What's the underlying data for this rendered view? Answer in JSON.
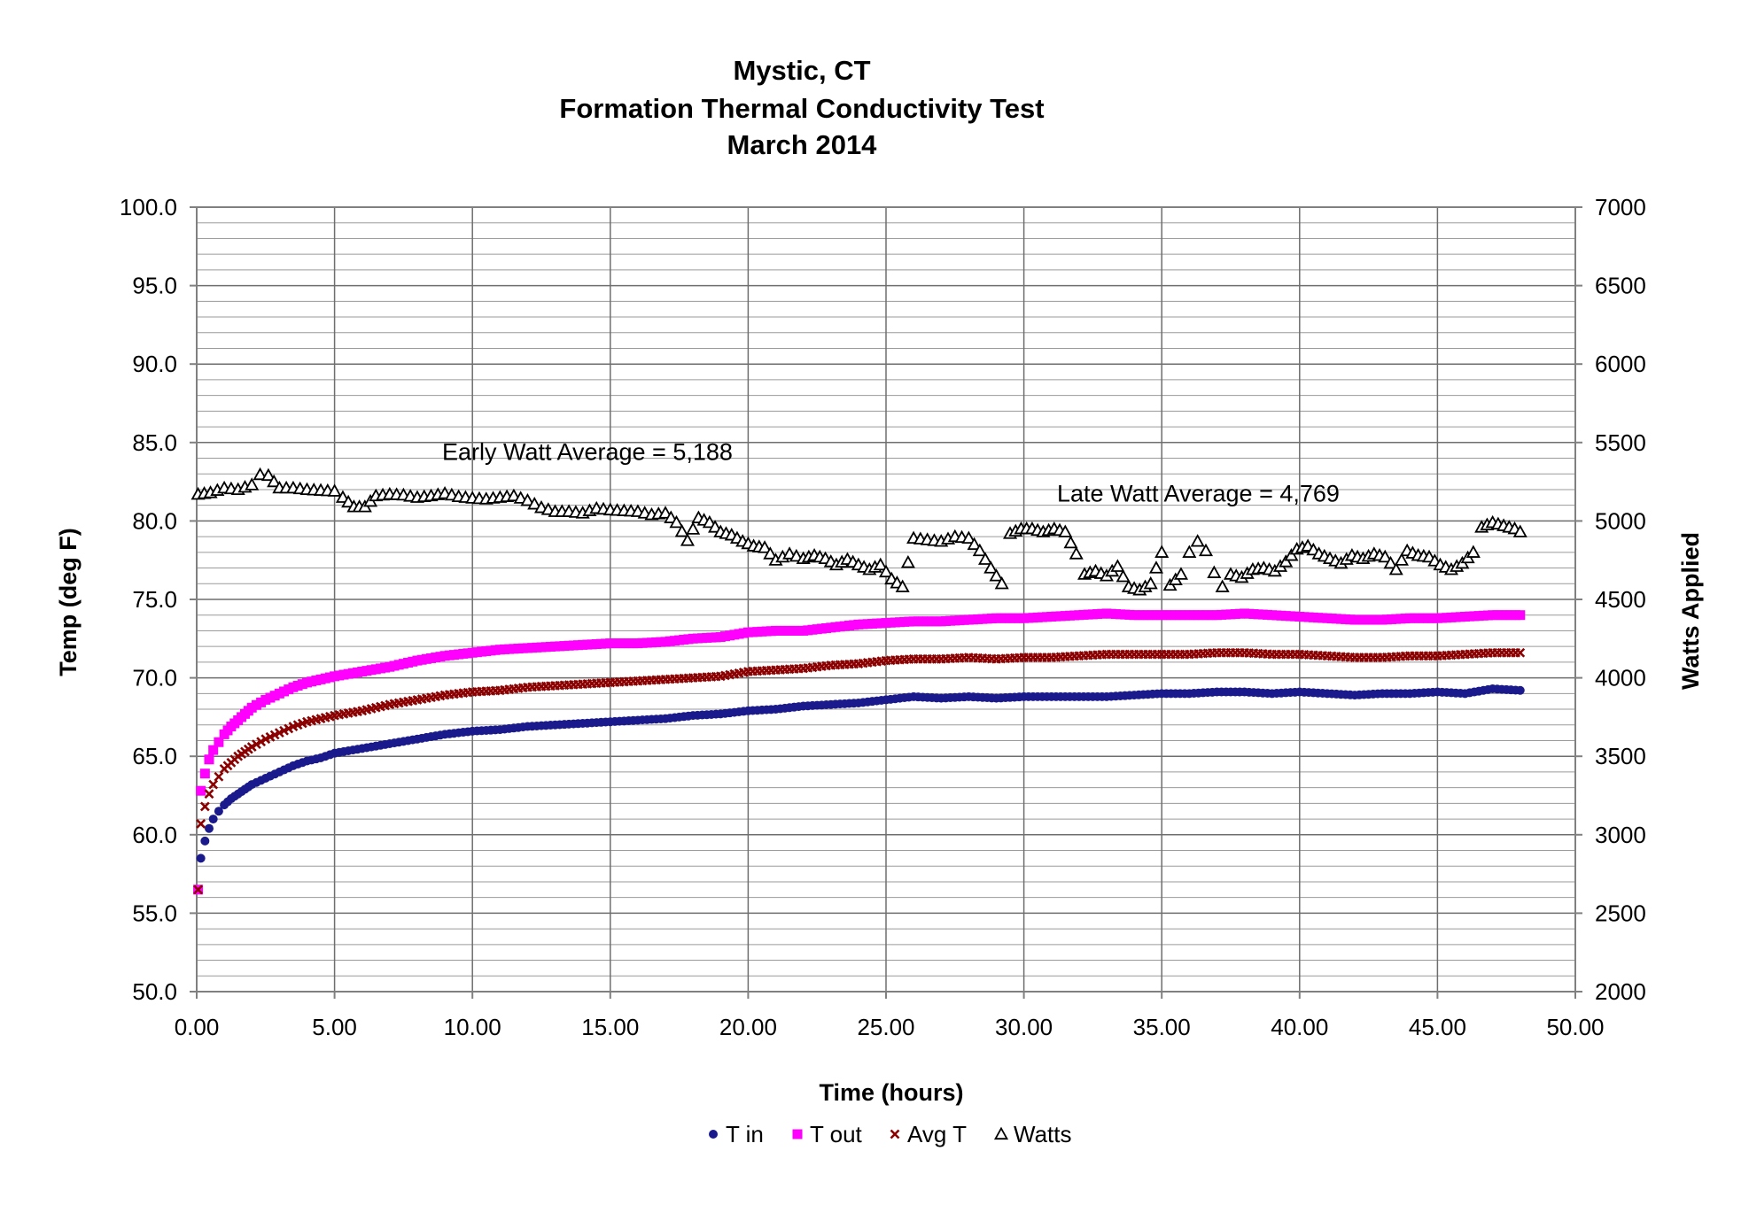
{
  "chart_data": {
    "type": "scatter",
    "title": [
      "Mystic, CT",
      "Formation Thermal Conductivity Test",
      "March 2014"
    ],
    "xlabel": "Time (hours)",
    "ylabel": "Temp (deg F)",
    "y2label": "Watts Applied",
    "xlim": [
      0,
      50
    ],
    "ylim": [
      50,
      100
    ],
    "y2lim": [
      2000,
      7000
    ],
    "x_ticks": [
      "0.00",
      "5.00",
      "10.00",
      "15.00",
      "20.00",
      "25.00",
      "30.00",
      "35.00",
      "40.00",
      "45.00",
      "50.00"
    ],
    "y_ticks": [
      "50.0",
      "55.0",
      "60.0",
      "65.0",
      "70.0",
      "75.0",
      "80.0",
      "85.0",
      "90.0",
      "95.0",
      "100.0"
    ],
    "y2_ticks": [
      "2000",
      "2500",
      "3000",
      "3500",
      "4000",
      "4500",
      "5000",
      "5500",
      "6000",
      "6500",
      "7000"
    ],
    "grid": true,
    "legend_position": "bottom",
    "annotations": [
      {
        "text": "Early Watt Average = 5,188",
        "x": 8.9,
        "y2": 5390
      },
      {
        "text": "Late Watt Average = 4,769",
        "x": 31.2,
        "y2": 5125
      }
    ],
    "series": [
      {
        "name": "T in",
        "axis": "left",
        "marker": "circle",
        "color": "#1a1a8c",
        "points": [
          [
            0.05,
            56.5
          ],
          [
            0.15,
            58.5
          ],
          [
            0.3,
            59.6
          ],
          [
            0.45,
            60.4
          ],
          [
            0.6,
            61.0
          ],
          [
            0.8,
            61.5
          ],
          [
            1.0,
            61.9
          ],
          [
            1.25,
            62.3
          ],
          [
            1.5,
            62.6
          ],
          [
            1.75,
            62.9
          ],
          [
            2.0,
            63.2
          ],
          [
            2.5,
            63.6
          ],
          [
            3.0,
            64.0
          ],
          [
            3.5,
            64.4
          ],
          [
            4.0,
            64.7
          ],
          [
            4.5,
            64.9
          ],
          [
            5.0,
            65.2
          ],
          [
            6.0,
            65.5
          ],
          [
            7.0,
            65.8
          ],
          [
            8.0,
            66.1
          ],
          [
            9.0,
            66.4
          ],
          [
            10.0,
            66.6
          ],
          [
            11.0,
            66.7
          ],
          [
            12.0,
            66.9
          ],
          [
            13.0,
            67.0
          ],
          [
            14.0,
            67.1
          ],
          [
            15.0,
            67.2
          ],
          [
            16.0,
            67.3
          ],
          [
            17.0,
            67.4
          ],
          [
            18.0,
            67.6
          ],
          [
            19.0,
            67.7
          ],
          [
            20.0,
            67.9
          ],
          [
            21.0,
            68.0
          ],
          [
            22.0,
            68.2
          ],
          [
            23.0,
            68.3
          ],
          [
            24.0,
            68.4
          ],
          [
            25.0,
            68.6
          ],
          [
            26.0,
            68.8
          ],
          [
            27.0,
            68.7
          ],
          [
            28.0,
            68.8
          ],
          [
            29.0,
            68.7
          ],
          [
            30.0,
            68.8
          ],
          [
            31.0,
            68.8
          ],
          [
            32.0,
            68.8
          ],
          [
            33.0,
            68.8
          ],
          [
            34.0,
            68.9
          ],
          [
            35.0,
            69.0
          ],
          [
            36.0,
            69.0
          ],
          [
            37.0,
            69.1
          ],
          [
            38.0,
            69.1
          ],
          [
            39.0,
            69.0
          ],
          [
            40.0,
            69.1
          ],
          [
            41.0,
            69.0
          ],
          [
            42.0,
            68.9
          ],
          [
            43.0,
            69.0
          ],
          [
            44.0,
            69.0
          ],
          [
            45.0,
            69.1
          ],
          [
            46.0,
            69.0
          ],
          [
            47.0,
            69.3
          ],
          [
            48.0,
            69.2
          ]
        ]
      },
      {
        "name": "T out",
        "axis": "left",
        "marker": "square",
        "color": "#ff00ff",
        "points": [
          [
            0.05,
            56.5
          ],
          [
            0.15,
            62.8
          ],
          [
            0.3,
            63.9
          ],
          [
            0.45,
            64.8
          ],
          [
            0.6,
            65.4
          ],
          [
            0.8,
            65.9
          ],
          [
            1.0,
            66.4
          ],
          [
            1.25,
            66.9
          ],
          [
            1.5,
            67.3
          ],
          [
            1.75,
            67.7
          ],
          [
            2.0,
            68.1
          ],
          [
            2.5,
            68.6
          ],
          [
            3.0,
            69.0
          ],
          [
            3.5,
            69.4
          ],
          [
            4.0,
            69.7
          ],
          [
            4.5,
            69.9
          ],
          [
            5.0,
            70.1
          ],
          [
            6.0,
            70.4
          ],
          [
            7.0,
            70.7
          ],
          [
            8.0,
            71.1
          ],
          [
            9.0,
            71.4
          ],
          [
            10.0,
            71.6
          ],
          [
            11.0,
            71.8
          ],
          [
            12.0,
            71.9
          ],
          [
            13.0,
            72.0
          ],
          [
            14.0,
            72.1
          ],
          [
            15.0,
            72.2
          ],
          [
            16.0,
            72.2
          ],
          [
            17.0,
            72.3
          ],
          [
            18.0,
            72.5
          ],
          [
            19.0,
            72.6
          ],
          [
            20.0,
            72.9
          ],
          [
            21.0,
            73.0
          ],
          [
            22.0,
            73.0
          ],
          [
            23.0,
            73.2
          ],
          [
            24.0,
            73.4
          ],
          [
            25.0,
            73.5
          ],
          [
            26.0,
            73.6
          ],
          [
            27.0,
            73.6
          ],
          [
            28.0,
            73.7
          ],
          [
            29.0,
            73.8
          ],
          [
            30.0,
            73.8
          ],
          [
            31.0,
            73.9
          ],
          [
            32.0,
            74.0
          ],
          [
            33.0,
            74.1
          ],
          [
            34.0,
            74.0
          ],
          [
            35.0,
            74.0
          ],
          [
            36.0,
            74.0
          ],
          [
            37.0,
            74.0
          ],
          [
            38.0,
            74.1
          ],
          [
            39.0,
            74.0
          ],
          [
            40.0,
            73.9
          ],
          [
            41.0,
            73.8
          ],
          [
            42.0,
            73.7
          ],
          [
            43.0,
            73.7
          ],
          [
            44.0,
            73.8
          ],
          [
            45.0,
            73.8
          ],
          [
            46.0,
            73.9
          ],
          [
            47.0,
            74.0
          ],
          [
            48.0,
            74.0
          ]
        ]
      },
      {
        "name": "Avg T",
        "axis": "left",
        "marker": "x",
        "color": "#8b0000",
        "points": [
          [
            0.05,
            56.5
          ],
          [
            0.15,
            60.7
          ],
          [
            0.3,
            61.8
          ],
          [
            0.45,
            62.6
          ],
          [
            0.6,
            63.2
          ],
          [
            0.8,
            63.7
          ],
          [
            1.0,
            64.2
          ],
          [
            1.25,
            64.6
          ],
          [
            1.5,
            65.0
          ],
          [
            1.75,
            65.3
          ],
          [
            2.0,
            65.6
          ],
          [
            2.5,
            66.1
          ],
          [
            3.0,
            66.5
          ],
          [
            3.5,
            66.9
          ],
          [
            4.0,
            67.2
          ],
          [
            4.5,
            67.4
          ],
          [
            5.0,
            67.6
          ],
          [
            6.0,
            67.9
          ],
          [
            7.0,
            68.3
          ],
          [
            8.0,
            68.6
          ],
          [
            9.0,
            68.9
          ],
          [
            10.0,
            69.1
          ],
          [
            11.0,
            69.2
          ],
          [
            12.0,
            69.4
          ],
          [
            13.0,
            69.5
          ],
          [
            14.0,
            69.6
          ],
          [
            15.0,
            69.7
          ],
          [
            16.0,
            69.8
          ],
          [
            17.0,
            69.9
          ],
          [
            18.0,
            70.0
          ],
          [
            19.0,
            70.1
          ],
          [
            20.0,
            70.4
          ],
          [
            21.0,
            70.5
          ],
          [
            22.0,
            70.6
          ],
          [
            23.0,
            70.8
          ],
          [
            24.0,
            70.9
          ],
          [
            25.0,
            71.1
          ],
          [
            26.0,
            71.2
          ],
          [
            27.0,
            71.2
          ],
          [
            28.0,
            71.3
          ],
          [
            29.0,
            71.2
          ],
          [
            30.0,
            71.3
          ],
          [
            31.0,
            71.3
          ],
          [
            32.0,
            71.4
          ],
          [
            33.0,
            71.5
          ],
          [
            34.0,
            71.5
          ],
          [
            35.0,
            71.5
          ],
          [
            36.0,
            71.5
          ],
          [
            37.0,
            71.6
          ],
          [
            38.0,
            71.6
          ],
          [
            39.0,
            71.5
          ],
          [
            40.0,
            71.5
          ],
          [
            41.0,
            71.4
          ],
          [
            42.0,
            71.3
          ],
          [
            43.0,
            71.3
          ],
          [
            44.0,
            71.4
          ],
          [
            45.0,
            71.4
          ],
          [
            46.0,
            71.5
          ],
          [
            47.0,
            71.6
          ],
          [
            48.0,
            71.6
          ]
        ]
      },
      {
        "name": "Watts",
        "axis": "right",
        "marker": "triangle",
        "color": "#000000",
        "points": [
          [
            0.05,
            5170
          ],
          [
            0.5,
            5180
          ],
          [
            1.0,
            5210
          ],
          [
            1.5,
            5200
          ],
          [
            2.0,
            5230
          ],
          [
            2.3,
            5295
          ],
          [
            2.6,
            5290
          ],
          [
            3.0,
            5210
          ],
          [
            3.5,
            5210
          ],
          [
            4.0,
            5200
          ],
          [
            4.5,
            5195
          ],
          [
            5.0,
            5190
          ],
          [
            5.3,
            5150
          ],
          [
            5.7,
            5090
          ],
          [
            6.1,
            5090
          ],
          [
            6.5,
            5160
          ],
          [
            7.0,
            5170
          ],
          [
            7.5,
            5165
          ],
          [
            8.0,
            5150
          ],
          [
            8.5,
            5160
          ],
          [
            9.0,
            5175
          ],
          [
            9.5,
            5155
          ],
          [
            10.0,
            5145
          ],
          [
            10.5,
            5140
          ],
          [
            11.0,
            5150
          ],
          [
            11.5,
            5160
          ],
          [
            12.0,
            5130
          ],
          [
            12.5,
            5085
          ],
          [
            13.0,
            5060
          ],
          [
            13.5,
            5060
          ],
          [
            14.0,
            5050
          ],
          [
            14.5,
            5080
          ],
          [
            15.0,
            5070
          ],
          [
            15.5,
            5065
          ],
          [
            16.0,
            5060
          ],
          [
            16.5,
            5040
          ],
          [
            17.0,
            5050
          ],
          [
            17.4,
            4990
          ],
          [
            17.8,
            4875
          ],
          [
            18.2,
            5020
          ],
          [
            18.6,
            4990
          ],
          [
            19.0,
            4930
          ],
          [
            19.4,
            4910
          ],
          [
            19.8,
            4870
          ],
          [
            20.2,
            4840
          ],
          [
            20.6,
            4830
          ],
          [
            21.0,
            4750
          ],
          [
            21.5,
            4790
          ],
          [
            22.0,
            4760
          ],
          [
            22.4,
            4780
          ],
          [
            22.8,
            4760
          ],
          [
            23.2,
            4720
          ],
          [
            23.6,
            4755
          ],
          [
            24.0,
            4720
          ],
          [
            24.4,
            4690
          ],
          [
            24.8,
            4720
          ],
          [
            25.2,
            4630
          ],
          [
            25.6,
            4580
          ],
          [
            26.0,
            4890
          ],
          [
            26.5,
            4880
          ],
          [
            27.0,
            4870
          ],
          [
            27.5,
            4900
          ],
          [
            28.0,
            4890
          ],
          [
            28.4,
            4810
          ],
          [
            28.8,
            4700
          ],
          [
            29.2,
            4600
          ],
          [
            29.5,
            4920
          ],
          [
            29.9,
            4950
          ],
          [
            30.3,
            4950
          ],
          [
            30.7,
            4930
          ],
          [
            31.1,
            4950
          ],
          [
            31.5,
            4930
          ],
          [
            31.9,
            4790
          ],
          [
            32.2,
            4660
          ],
          [
            32.6,
            4680
          ],
          [
            33.0,
            4650
          ],
          [
            33.4,
            4710
          ],
          [
            33.8,
            4580
          ],
          [
            34.2,
            4560
          ],
          [
            34.6,
            4600
          ],
          [
            35.0,
            4800
          ],
          [
            35.3,
            4590
          ],
          [
            35.7,
            4660
          ],
          [
            36.0,
            4800
          ],
          [
            36.3,
            4870
          ],
          [
            36.6,
            4810
          ],
          [
            36.9,
            4670
          ],
          [
            37.2,
            4580
          ],
          [
            37.5,
            4660
          ],
          [
            37.9,
            4640
          ],
          [
            38.3,
            4690
          ],
          [
            38.7,
            4700
          ],
          [
            39.1,
            4680
          ],
          [
            39.5,
            4740
          ],
          [
            39.9,
            4820
          ],
          [
            40.3,
            4840
          ],
          [
            40.7,
            4790
          ],
          [
            41.1,
            4760
          ],
          [
            41.5,
            4730
          ],
          [
            41.9,
            4780
          ],
          [
            42.3,
            4760
          ],
          [
            42.7,
            4790
          ],
          [
            43.1,
            4770
          ],
          [
            43.5,
            4690
          ],
          [
            43.9,
            4810
          ],
          [
            44.3,
            4780
          ],
          [
            44.7,
            4770
          ],
          [
            45.1,
            4720
          ],
          [
            45.5,
            4690
          ],
          [
            45.9,
            4730
          ],
          [
            46.3,
            4800
          ],
          [
            46.6,
            4960
          ],
          [
            47.0,
            4990
          ],
          [
            47.4,
            4970
          ],
          [
            47.8,
            4950
          ],
          [
            48.0,
            4930
          ]
        ]
      }
    ]
  }
}
